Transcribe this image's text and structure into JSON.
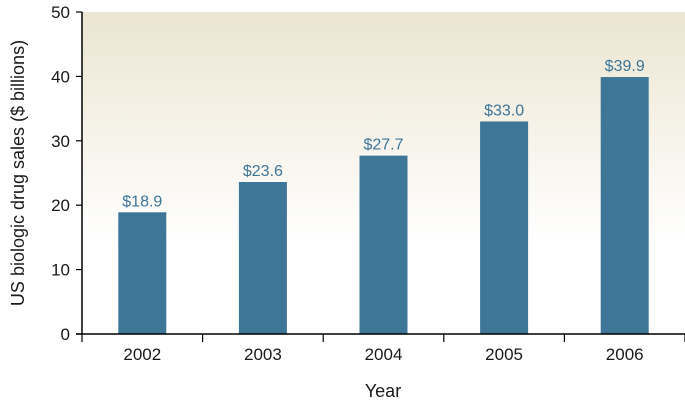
{
  "chart_data": {
    "type": "bar",
    "categories": [
      "2002",
      "2003",
      "2004",
      "2005",
      "2006"
    ],
    "values": [
      18.9,
      23.6,
      27.7,
      33.0,
      39.9
    ],
    "data_labels": [
      "$18.9",
      "$23.6",
      "$27.7",
      "$33.0",
      "$39.9"
    ],
    "xlabel": "Year",
    "ylabel": "US biologic drug sales ($ billions)",
    "ylim": [
      0,
      50
    ],
    "yticks": [
      0,
      10,
      20,
      30,
      40,
      50
    ],
    "grid": false,
    "colors": {
      "bar": "#3e7698",
      "data_label": "#3e7698",
      "plot_bg_top": "#ebe5d1",
      "plot_bg_bottom": "#ffffff",
      "axis": "#000000"
    }
  }
}
